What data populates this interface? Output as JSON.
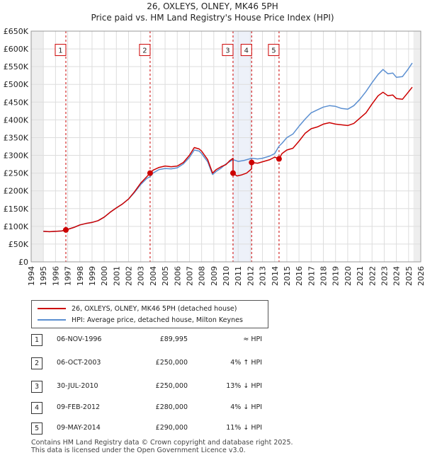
{
  "chart_data": {
    "type": "line",
    "title": "26, OXLEYS, OLNEY, MK46 5PH",
    "subtitle": "Price paid vs. HM Land Registry's House Price Index (HPI)",
    "xlim": [
      1994,
      2026
    ],
    "ylim": [
      0,
      650000
    ],
    "x_ticks": [
      "1994",
      "1995",
      "1996",
      "1997",
      "1998",
      "1999",
      "2000",
      "2001",
      "2002",
      "2003",
      "2004",
      "2005",
      "2006",
      "2007",
      "2008",
      "2009",
      "2010",
      "2011",
      "2012",
      "2013",
      "2014",
      "2015",
      "2016",
      "2017",
      "2018",
      "2019",
      "2020",
      "2021",
      "2022",
      "2023",
      "2024",
      "2025",
      "2026"
    ],
    "y_ticks": [
      {
        "value": 0,
        "label": "£0"
      },
      {
        "value": 50000,
        "label": "£50K"
      },
      {
        "value": 100000,
        "label": "£100K"
      },
      {
        "value": 150000,
        "label": "£150K"
      },
      {
        "value": 200000,
        "label": "£200K"
      },
      {
        "value": 250000,
        "label": "£250K"
      },
      {
        "value": 300000,
        "label": "£300K"
      },
      {
        "value": 350000,
        "label": "£350K"
      },
      {
        "value": 400000,
        "label": "£400K"
      },
      {
        "value": 450000,
        "label": "£450K"
      },
      {
        "value": 500000,
        "label": "£500K"
      },
      {
        "value": 550000,
        "label": "£550K"
      },
      {
        "value": 600000,
        "label": "£600K"
      },
      {
        "value": 650000,
        "label": "£650K"
      }
    ],
    "data_start": 1995.0,
    "data_end": 2025.4,
    "series": [
      {
        "name": "26, OXLEYS, OLNEY, MK46 5PH (detached house)",
        "color": "#cc0000",
        "points": [
          [
            1995.0,
            86000
          ],
          [
            1995.5,
            85000
          ],
          [
            1996.0,
            86000
          ],
          [
            1996.5,
            87000
          ],
          [
            1996.85,
            89995
          ],
          [
            1997.5,
            97000
          ],
          [
            1998.0,
            104000
          ],
          [
            1998.5,
            108000
          ],
          [
            1999.0,
            111000
          ],
          [
            1999.5,
            116000
          ],
          [
            2000.0,
            126000
          ],
          [
            2000.5,
            140000
          ],
          [
            2001.0,
            152000
          ],
          [
            2001.5,
            163000
          ],
          [
            2002.0,
            177000
          ],
          [
            2002.5,
            198000
          ],
          [
            2003.0,
            222000
          ],
          [
            2003.5,
            240000
          ],
          [
            2003.77,
            250000
          ],
          [
            2004.0,
            258000
          ],
          [
            2004.5,
            266000
          ],
          [
            2005.0,
            270000
          ],
          [
            2005.5,
            268000
          ],
          [
            2006.0,
            270000
          ],
          [
            2006.5,
            280000
          ],
          [
            2007.0,
            300000
          ],
          [
            2007.4,
            322000
          ],
          [
            2007.8,
            318000
          ],
          [
            2008.0,
            312000
          ],
          [
            2008.5,
            288000
          ],
          [
            2008.9,
            250000
          ],
          [
            2009.2,
            260000
          ],
          [
            2009.6,
            268000
          ],
          [
            2010.0,
            274000
          ],
          [
            2010.3,
            285000
          ],
          [
            2010.58,
            292000
          ],
          [
            2010.58,
            250000
          ],
          [
            2010.9,
            242000
          ],
          [
            2011.3,
            245000
          ],
          [
            2011.7,
            250000
          ],
          [
            2012.11,
            262000
          ],
          [
            2012.11,
            280000
          ],
          [
            2012.6,
            278000
          ],
          [
            2013.0,
            282000
          ],
          [
            2013.6,
            288000
          ],
          [
            2014.0,
            295000
          ],
          [
            2014.36,
            290000
          ],
          [
            2014.6,
            305000
          ],
          [
            2015.0,
            315000
          ],
          [
            2015.5,
            320000
          ],
          [
            2016.0,
            340000
          ],
          [
            2016.5,
            362000
          ],
          [
            2017.0,
            375000
          ],
          [
            2017.5,
            380000
          ],
          [
            2018.0,
            388000
          ],
          [
            2018.5,
            392000
          ],
          [
            2019.0,
            388000
          ],
          [
            2019.5,
            386000
          ],
          [
            2020.0,
            384000
          ],
          [
            2020.5,
            390000
          ],
          [
            2021.0,
            405000
          ],
          [
            2021.5,
            420000
          ],
          [
            2022.0,
            445000
          ],
          [
            2022.5,
            468000
          ],
          [
            2022.9,
            478000
          ],
          [
            2023.3,
            468000
          ],
          [
            2023.7,
            470000
          ],
          [
            2024.0,
            460000
          ],
          [
            2024.5,
            458000
          ],
          [
            2024.9,
            475000
          ],
          [
            2025.3,
            492000
          ]
        ]
      },
      {
        "name": "HPI: Average price, detached house, Milton Keynes",
        "color": "#5b8fd1",
        "points": [
          [
            1995.0,
            86000
          ],
          [
            1995.5,
            85000
          ],
          [
            1996.0,
            86000
          ],
          [
            1996.5,
            87000
          ],
          [
            1996.85,
            89995
          ],
          [
            1997.5,
            97000
          ],
          [
            1998.0,
            104000
          ],
          [
            1998.5,
            108000
          ],
          [
            1999.0,
            111000
          ],
          [
            1999.5,
            116000
          ],
          [
            2000.0,
            126000
          ],
          [
            2000.5,
            140000
          ],
          [
            2001.0,
            152000
          ],
          [
            2001.5,
            163000
          ],
          [
            2002.0,
            177000
          ],
          [
            2002.5,
            196000
          ],
          [
            2003.0,
            218000
          ],
          [
            2003.5,
            235000
          ],
          [
            2003.77,
            240000
          ],
          [
            2004.0,
            250000
          ],
          [
            2004.5,
            260000
          ],
          [
            2005.0,
            263000
          ],
          [
            2005.5,
            262000
          ],
          [
            2006.0,
            265000
          ],
          [
            2006.5,
            276000
          ],
          [
            2007.0,
            294000
          ],
          [
            2007.4,
            315000
          ],
          [
            2007.8,
            312000
          ],
          [
            2008.0,
            305000
          ],
          [
            2008.5,
            282000
          ],
          [
            2008.9,
            246000
          ],
          [
            2009.2,
            255000
          ],
          [
            2009.6,
            264000
          ],
          [
            2010.0,
            276000
          ],
          [
            2010.58,
            288000
          ],
          [
            2011.0,
            283000
          ],
          [
            2011.5,
            286000
          ],
          [
            2012.11,
            292000
          ],
          [
            2012.6,
            290000
          ],
          [
            2013.0,
            292000
          ],
          [
            2013.6,
            298000
          ],
          [
            2014.0,
            305000
          ],
          [
            2014.36,
            326000
          ],
          [
            2014.6,
            334000
          ],
          [
            2015.0,
            350000
          ],
          [
            2015.5,
            360000
          ],
          [
            2016.0,
            382000
          ],
          [
            2016.5,
            402000
          ],
          [
            2017.0,
            420000
          ],
          [
            2017.5,
            428000
          ],
          [
            2018.0,
            436000
          ],
          [
            2018.5,
            440000
          ],
          [
            2019.0,
            438000
          ],
          [
            2019.5,
            432000
          ],
          [
            2020.0,
            430000
          ],
          [
            2020.5,
            440000
          ],
          [
            2021.0,
            458000
          ],
          [
            2021.5,
            480000
          ],
          [
            2022.0,
            505000
          ],
          [
            2022.5,
            528000
          ],
          [
            2022.9,
            542000
          ],
          [
            2023.3,
            530000
          ],
          [
            2023.7,
            532000
          ],
          [
            2024.0,
            520000
          ],
          [
            2024.5,
            522000
          ],
          [
            2024.9,
            540000
          ],
          [
            2025.3,
            560000
          ]
        ]
      }
    ],
    "sale_markers": [
      {
        "label": "1",
        "x": 1996.85,
        "y": 89995
      },
      {
        "label": "2",
        "x": 2003.77,
        "y": 250000
      },
      {
        "label": "3",
        "x": 2010.58,
        "y": 250000
      },
      {
        "label": "4",
        "x": 2012.11,
        "y": 280000
      },
      {
        "label": "5",
        "x": 2014.36,
        "y": 290000
      }
    ],
    "marker_label_y": 595000
  },
  "legend": {
    "property_label": "26, OXLEYS, OLNEY, MK46 5PH (detached house)",
    "hpi_label": "HPI: Average price, detached house, Milton Keynes",
    "property_color": "#cc0000",
    "hpi_color": "#5b8fd1"
  },
  "sales": [
    {
      "num": "1",
      "date": "06-NOV-1996",
      "price": "£89,995",
      "hpi": "≈ HPI"
    },
    {
      "num": "2",
      "date": "06-OCT-2003",
      "price": "£250,000",
      "hpi": "4% ↑ HPI"
    },
    {
      "num": "3",
      "date": "30-JUL-2010",
      "price": "£250,000",
      "hpi": "13% ↓ HPI"
    },
    {
      "num": "4",
      "date": "09-FEB-2012",
      "price": "£280,000",
      "hpi": "4% ↓ HPI"
    },
    {
      "num": "5",
      "date": "09-MAY-2014",
      "price": "£290,000",
      "hpi": "11% ↓ HPI"
    }
  ],
  "footer": {
    "line1": "Contains HM Land Registry data © Crown copyright and database right 2025.",
    "line2": "This data is licensed under the Open Government Licence v3.0."
  }
}
